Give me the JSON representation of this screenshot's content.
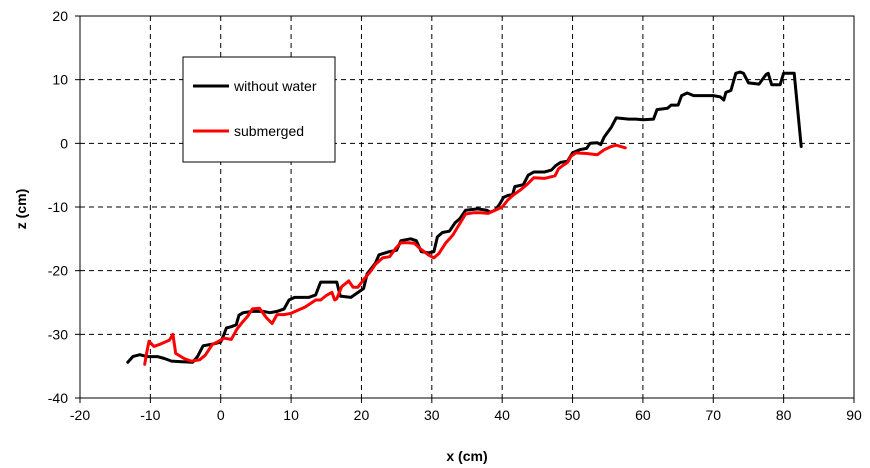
{
  "chart_data": {
    "type": "line",
    "title": "",
    "xlabel": "x (cm)",
    "ylabel": "z (cm)",
    "xlim": [
      -20,
      90
    ],
    "ylim": [
      -40,
      20
    ],
    "xticks": [
      -20,
      -10,
      0,
      10,
      20,
      30,
      40,
      50,
      60,
      70,
      80,
      90
    ],
    "yticks": [
      -40,
      -30,
      -20,
      -10,
      0,
      10,
      20
    ],
    "grid": true,
    "legend_position": "upper-left inside plot",
    "series": [
      {
        "name": "without water",
        "color": "#000000",
        "points": [
          [
            -13.2,
            -34.4
          ],
          [
            -12.5,
            -33.5
          ],
          [
            -11.5,
            -33.2
          ],
          [
            -10.5,
            -33.5
          ],
          [
            -9,
            -33.5
          ],
          [
            -8,
            -33.8
          ],
          [
            -7,
            -34.2
          ],
          [
            -5.5,
            -34.3
          ],
          [
            -4,
            -34.4
          ],
          [
            -3.3,
            -33.5
          ],
          [
            -2.5,
            -31.8
          ],
          [
            -1,
            -31.5
          ],
          [
            0,
            -31.2
          ],
          [
            0.4,
            -30.2
          ],
          [
            0.8,
            -29.0
          ],
          [
            1.5,
            -28.8
          ],
          [
            2.2,
            -28.5
          ],
          [
            2.6,
            -27.0
          ],
          [
            3.2,
            -26.6
          ],
          [
            4.5,
            -26.4
          ],
          [
            6,
            -26.4
          ],
          [
            7,
            -26.6
          ],
          [
            8,
            -26.4
          ],
          [
            9,
            -26.0
          ],
          [
            9.7,
            -24.6
          ],
          [
            10.5,
            -24.2
          ],
          [
            12.5,
            -24.2
          ],
          [
            13.5,
            -23.8
          ],
          [
            14.2,
            -21.8
          ],
          [
            16.5,
            -21.8
          ],
          [
            17,
            -24.0
          ],
          [
            18.5,
            -24.2
          ],
          [
            20.3,
            -22.8
          ],
          [
            20.8,
            -20.5
          ],
          [
            21.5,
            -19.5
          ],
          [
            22,
            -18.8
          ],
          [
            22.5,
            -17.5
          ],
          [
            24,
            -17.0
          ],
          [
            25,
            -16.8
          ],
          [
            25.6,
            -15.3
          ],
          [
            27,
            -15.0
          ],
          [
            27.8,
            -15.3
          ],
          [
            28.5,
            -17.0
          ],
          [
            29.5,
            -17.2
          ],
          [
            30.3,
            -17.0
          ],
          [
            30.8,
            -14.7
          ],
          [
            31.5,
            -14.0
          ],
          [
            32.5,
            -13.8
          ],
          [
            33.3,
            -12.5
          ],
          [
            34,
            -11.8
          ],
          [
            34.8,
            -10.5
          ],
          [
            36.5,
            -10.3
          ],
          [
            37.8,
            -10.5
          ],
          [
            38.3,
            -10.8
          ],
          [
            39,
            -10.5
          ],
          [
            39.6,
            -9.6
          ],
          [
            40.2,
            -8.5
          ],
          [
            40.8,
            -8.2
          ],
          [
            41.5,
            -8.0
          ],
          [
            41.8,
            -6.8
          ],
          [
            43,
            -6.5
          ],
          [
            43.7,
            -5.0
          ],
          [
            44.5,
            -4.5
          ],
          [
            46,
            -4.5
          ],
          [
            47,
            -4.2
          ],
          [
            47.6,
            -3.5
          ],
          [
            48.3,
            -3.0
          ],
          [
            49.3,
            -2.8
          ],
          [
            50,
            -1.5
          ],
          [
            51,
            -1.0
          ],
          [
            52,
            -0.8
          ],
          [
            52.5,
            0.0
          ],
          [
            53.5,
            0.1
          ],
          [
            54,
            -0.2
          ],
          [
            54.5,
            1.0
          ],
          [
            55.5,
            2.5
          ],
          [
            56.2,
            4.0
          ],
          [
            58,
            3.8
          ],
          [
            59,
            3.8
          ],
          [
            60,
            3.7
          ],
          [
            61.5,
            3.8
          ],
          [
            62,
            5.3
          ],
          [
            63.5,
            5.5
          ],
          [
            64,
            6.0
          ],
          [
            65,
            6.0
          ],
          [
            65.5,
            7.5
          ],
          [
            66.3,
            7.9
          ],
          [
            67.2,
            7.5
          ],
          [
            68,
            7.5
          ],
          [
            69,
            7.5
          ],
          [
            70,
            7.5
          ],
          [
            71,
            7.3
          ],
          [
            71.5,
            6.8
          ],
          [
            71.8,
            8.0
          ],
          [
            72.5,
            8.3
          ],
          [
            73.2,
            11.0
          ],
          [
            73.8,
            11.2
          ],
          [
            74.3,
            11.0
          ],
          [
            75,
            9.5
          ],
          [
            76.5,
            9.3
          ],
          [
            77.5,
            10.8
          ],
          [
            77.8,
            11.0
          ],
          [
            78.3,
            9.2
          ],
          [
            79.5,
            9.2
          ],
          [
            80,
            11.0
          ],
          [
            81.5,
            11.0
          ],
          [
            82.5,
            -0.5
          ]
        ]
      },
      {
        "name": "submerged",
        "color": "#ff0000",
        "points": [
          [
            -10.8,
            -34.7
          ],
          [
            -10.5,
            -32.8
          ],
          [
            -10.2,
            -31.1
          ],
          [
            -9.5,
            -31.9
          ],
          [
            -8.5,
            -31.5
          ],
          [
            -7.3,
            -30.9
          ],
          [
            -6.8,
            -30.0
          ],
          [
            -6.4,
            -33.0
          ],
          [
            -5.2,
            -33.8
          ],
          [
            -4.2,
            -34.2
          ],
          [
            -3,
            -34.0
          ],
          [
            -2.2,
            -33.3
          ],
          [
            -1.2,
            -31.6
          ],
          [
            -0.3,
            -31.1
          ],
          [
            0.5,
            -30.6
          ],
          [
            1.5,
            -30.8
          ],
          [
            2.3,
            -29.2
          ],
          [
            3,
            -28.2
          ],
          [
            3.8,
            -27.2
          ],
          [
            4.5,
            -26.0
          ],
          [
            5.5,
            -25.9
          ],
          [
            6.5,
            -27.4
          ],
          [
            7.3,
            -28.3
          ],
          [
            8,
            -26.9
          ],
          [
            9,
            -26.9
          ],
          [
            10,
            -26.7
          ],
          [
            11,
            -26.2
          ],
          [
            12,
            -25.7
          ],
          [
            13.5,
            -24.6
          ],
          [
            14.2,
            -24.6
          ],
          [
            15,
            -23.9
          ],
          [
            15.8,
            -23.4
          ],
          [
            16.2,
            -24.6
          ],
          [
            16.5,
            -24.4
          ],
          [
            17.2,
            -22.5
          ],
          [
            18.2,
            -21.6
          ],
          [
            18.8,
            -22.6
          ],
          [
            19.5,
            -22.6
          ],
          [
            20.3,
            -21.4
          ],
          [
            21.3,
            -20.1
          ],
          [
            22,
            -19.0
          ],
          [
            23,
            -18.0
          ],
          [
            24,
            -17.8
          ],
          [
            24.8,
            -16.6
          ],
          [
            25.6,
            -15.6
          ],
          [
            26.6,
            -15.6
          ],
          [
            27.5,
            -15.7
          ],
          [
            28.3,
            -16.5
          ],
          [
            29.5,
            -17.5
          ],
          [
            30.3,
            -18.0
          ],
          [
            31,
            -17.3
          ],
          [
            32,
            -15.6
          ],
          [
            33,
            -14.4
          ],
          [
            33.8,
            -12.9
          ],
          [
            34.8,
            -11.1
          ],
          [
            36,
            -10.9
          ],
          [
            37,
            -10.9
          ],
          [
            38,
            -11.0
          ],
          [
            39,
            -10.5
          ],
          [
            40,
            -10.0
          ],
          [
            40.8,
            -8.9
          ],
          [
            41.5,
            -8.2
          ],
          [
            42.5,
            -7.4
          ],
          [
            43.5,
            -6.5
          ],
          [
            44.5,
            -5.4
          ],
          [
            46,
            -5.5
          ],
          [
            47.5,
            -5.1
          ],
          [
            48,
            -4.0
          ],
          [
            48.6,
            -3.5
          ],
          [
            49.3,
            -3.0
          ],
          [
            49.8,
            -2.0
          ],
          [
            50.5,
            -1.5
          ],
          [
            52,
            -1.6
          ],
          [
            53.5,
            -1.8
          ],
          [
            54.5,
            -1.0
          ],
          [
            55.5,
            -0.5
          ],
          [
            56.2,
            -0.3
          ],
          [
            57.5,
            -0.7
          ]
        ]
      }
    ]
  }
}
